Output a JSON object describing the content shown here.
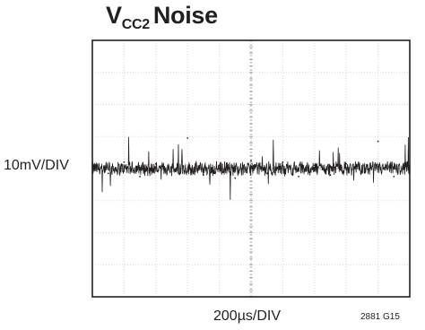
{
  "chart_data": {
    "type": "line",
    "title_main": "V",
    "title_sub": "CC2",
    "title_rest": "Noise",
    "ylabel": "10mV/DIV",
    "xlabel": "200µs/DIV",
    "figure_id": "2881 G15",
    "grid": true,
    "x_divisions": 10,
    "y_divisions": 8,
    "xlim": [
      0,
      2000
    ],
    "ylim": [
      -40,
      40
    ],
    "x_unit": "µs",
    "y_unit": "mV",
    "series": [
      {
        "baseline": 0,
        "noise_peak_to_peak": 5,
        "spike_max": 10,
        "x": [
          0,
          100,
          200,
          300,
          400,
          500,
          600,
          700,
          800,
          900,
          1000,
          1100,
          1200,
          1300,
          1400,
          1500,
          1600,
          1700,
          1800,
          1900,
          2000
        ],
        "values": [
          0.5,
          -1.5,
          2.0,
          -2.5,
          1.5,
          -1.0,
          9.5,
          -2.0,
          1.0,
          -3.0,
          2.5,
          -1.5,
          2.0,
          -2.5,
          1.0,
          -2.0,
          1.5,
          -1.0,
          8.5,
          -2.5,
          1.0
        ]
      }
    ]
  }
}
